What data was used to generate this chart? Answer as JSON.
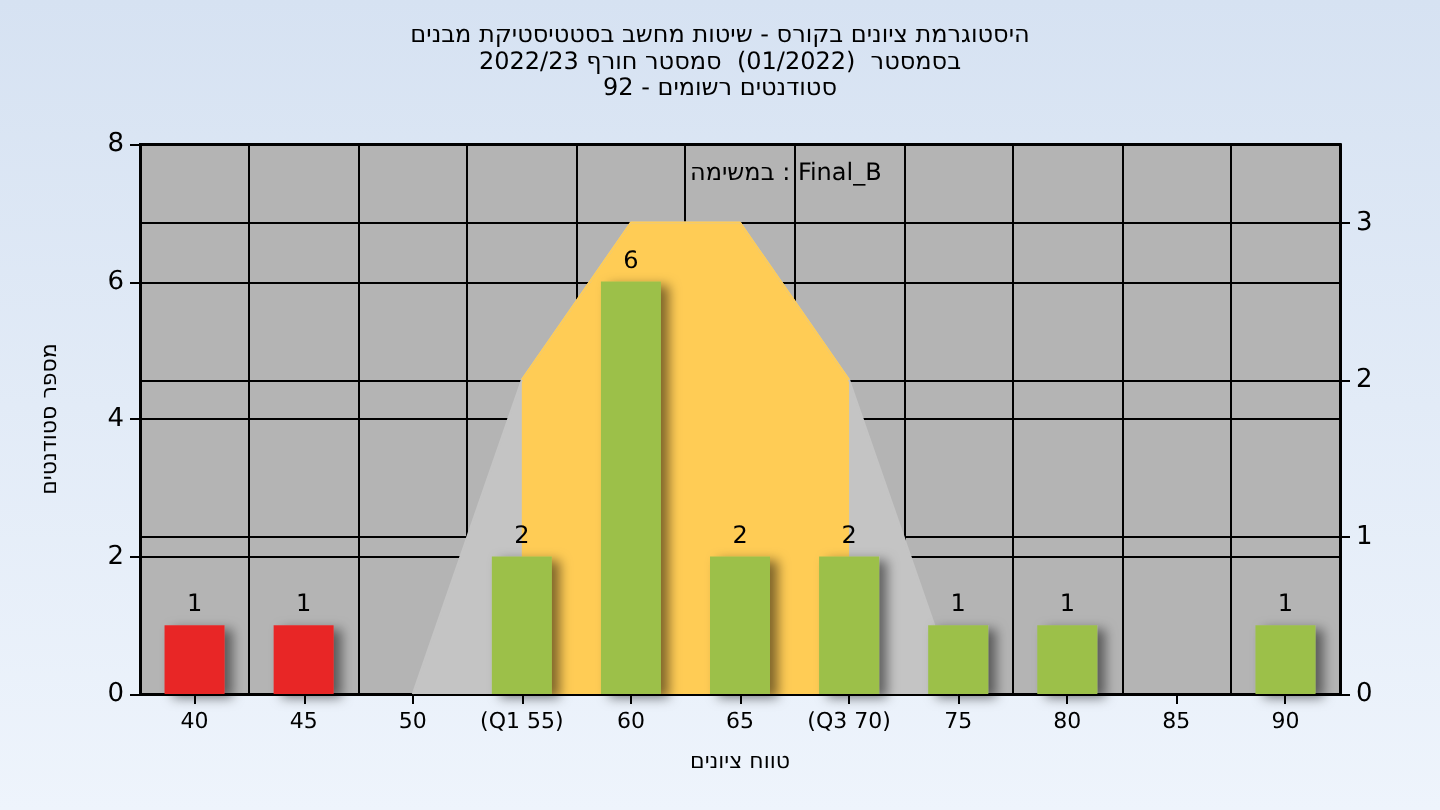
{
  "chart_data": {
    "type": "bar",
    "title": "היסטוגרמת ציונים בקורס - שיטות מחשב בסטטיסטיקת מבנים",
    "subtitle": "בסמסטר  (01/2022)  סמסטר חורף 2022/23\nסטודנטים רשומים - 92",
    "xlabel": "טווח ציונים",
    "ylabel": "מספר סטודנטים",
    "annotations": [
      "במשימה : Final_B"
    ],
    "categories": [
      "40",
      "45",
      "50",
      "(Q1 55)",
      "60",
      "65",
      "(Q3 70)",
      "75",
      "80",
      "85",
      "90"
    ],
    "series": [
      {
        "type": "area",
        "axis": "y2",
        "color": "#c4c4c4",
        "values": [
          null,
          null,
          0,
          2,
          3,
          3,
          2,
          0,
          null,
          null,
          null
        ]
      },
      {
        "type": "area",
        "axis": "y2",
        "color": "#ffcc55",
        "values": [
          null,
          null,
          null,
          2,
          3,
          3,
          2,
          null,
          null,
          null,
          null
        ]
      },
      {
        "values": [
          1,
          1,
          0,
          2,
          6,
          2,
          2,
          1,
          1,
          0,
          1
        ],
        "value_labels": [
          "1",
          "1",
          null,
          "2",
          "6",
          "2",
          "2",
          "1",
          "1",
          null,
          "1"
        ],
        "colors": [
          "#e82828",
          "#e82828",
          "#9cc04a",
          "#9cc04a",
          "#9cc04a",
          "#9cc04a",
          "#9cc04a",
          "#9cc04a",
          "#9cc04a",
          "#9cc04a",
          "#9cc04a"
        ]
      }
    ],
    "ylim": [
      0,
      8
    ],
    "yticks": [
      0,
      2,
      4,
      6,
      8
    ],
    "y2lim": [
      0,
      3.5
    ],
    "y2ticks": [
      0,
      1,
      2,
      3
    ],
    "grid": true,
    "marker": "none"
  }
}
